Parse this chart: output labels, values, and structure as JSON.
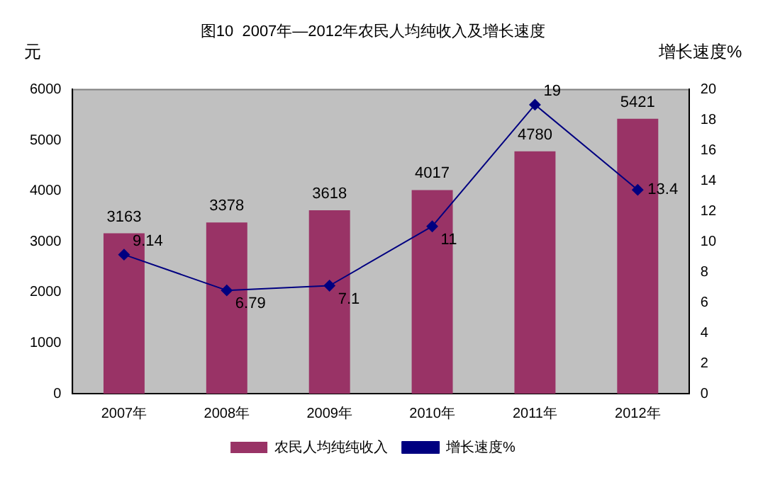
{
  "chart_data": {
    "type": "bar",
    "title": "图10  2007年—2012年农民人均纯收入及增长速度",
    "ylabel": "元",
    "y2label": "增长速度%",
    "categories": [
      "2007年",
      "2008年",
      "2009年",
      "2010年",
      "2011年",
      "2012年"
    ],
    "series": [
      {
        "name": "农民人均纯纯收入",
        "color": "#993366",
        "values": [
          3163,
          3378,
          3618,
          4017,
          4780,
          5421
        ]
      },
      {
        "name": "增长速度%",
        "type": "line",
        "axis": "y2",
        "color": "#000080",
        "marker": "diamond",
        "values": [
          9.14,
          6.79,
          7.1,
          11,
          19,
          13.4
        ]
      }
    ],
    "ylim": [
      0,
      6000
    ],
    "yticks": [
      0,
      1000,
      2000,
      3000,
      4000,
      5000,
      6000
    ],
    "y2lim": [
      0,
      20
    ],
    "y2ticks": [
      0,
      2,
      4,
      6,
      8,
      10,
      12,
      14,
      16,
      18,
      20
    ],
    "grid": false,
    "legend": "bottom",
    "data_labels": true
  }
}
